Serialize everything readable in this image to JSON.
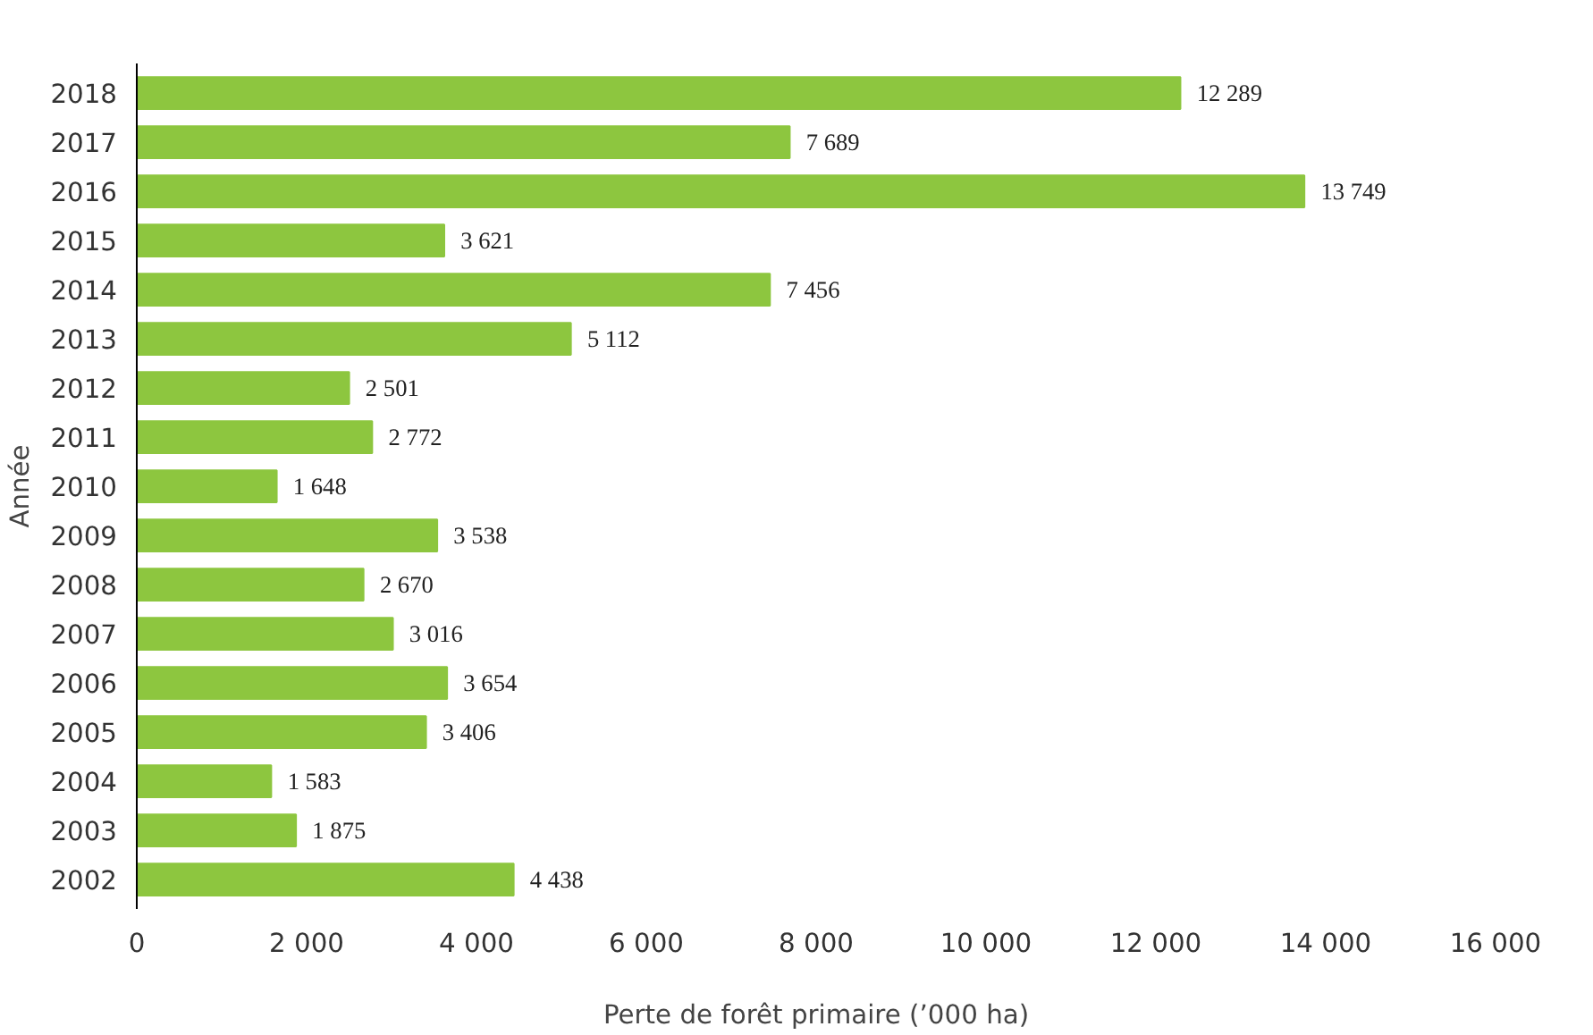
{
  "chart_data": {
    "type": "bar",
    "orientation": "horizontal",
    "xlabel": "Perte de forêt primaire (’000 ha)",
    "ylabel": "Année",
    "categories": [
      "2018",
      "2017",
      "2016",
      "2015",
      "2014",
      "2013",
      "2012",
      "2011",
      "2010",
      "2009",
      "2008",
      "2007",
      "2006",
      "2005",
      "2004",
      "2003",
      "2002"
    ],
    "values": [
      12289,
      7689,
      13749,
      3621,
      7456,
      5112,
      2501,
      2772,
      1648,
      3538,
      2670,
      3016,
      3654,
      3406,
      1583,
      1875,
      4438
    ],
    "value_labels": [
      "12 289",
      "7 689",
      "13 749",
      "3 621",
      "7 456",
      "5 112",
      "2 501",
      "2 772",
      "1 648",
      "3 538",
      "2 670",
      "3 016",
      "3 654",
      "3 406",
      "1 583",
      "1 875",
      "4 438"
    ],
    "color": "#8dc63f",
    "xlim": [
      0,
      16000
    ],
    "xticks": [
      0,
      {
        "value": 2000,
        "label": "2 000"
      },
      {
        "value": 4000,
        "label": "4 000"
      },
      {
        "value": 6000,
        "label": "6 000"
      },
      {
        "value": 8000,
        "label": "8 000"
      },
      {
        "value": 10000,
        "label": "10 000"
      },
      {
        "value": 12000,
        "label": "12 000"
      },
      {
        "value": 14000,
        "label": "14 000"
      },
      {
        "value": 16000,
        "label": "16 000"
      }
    ],
    "grid": false
  }
}
